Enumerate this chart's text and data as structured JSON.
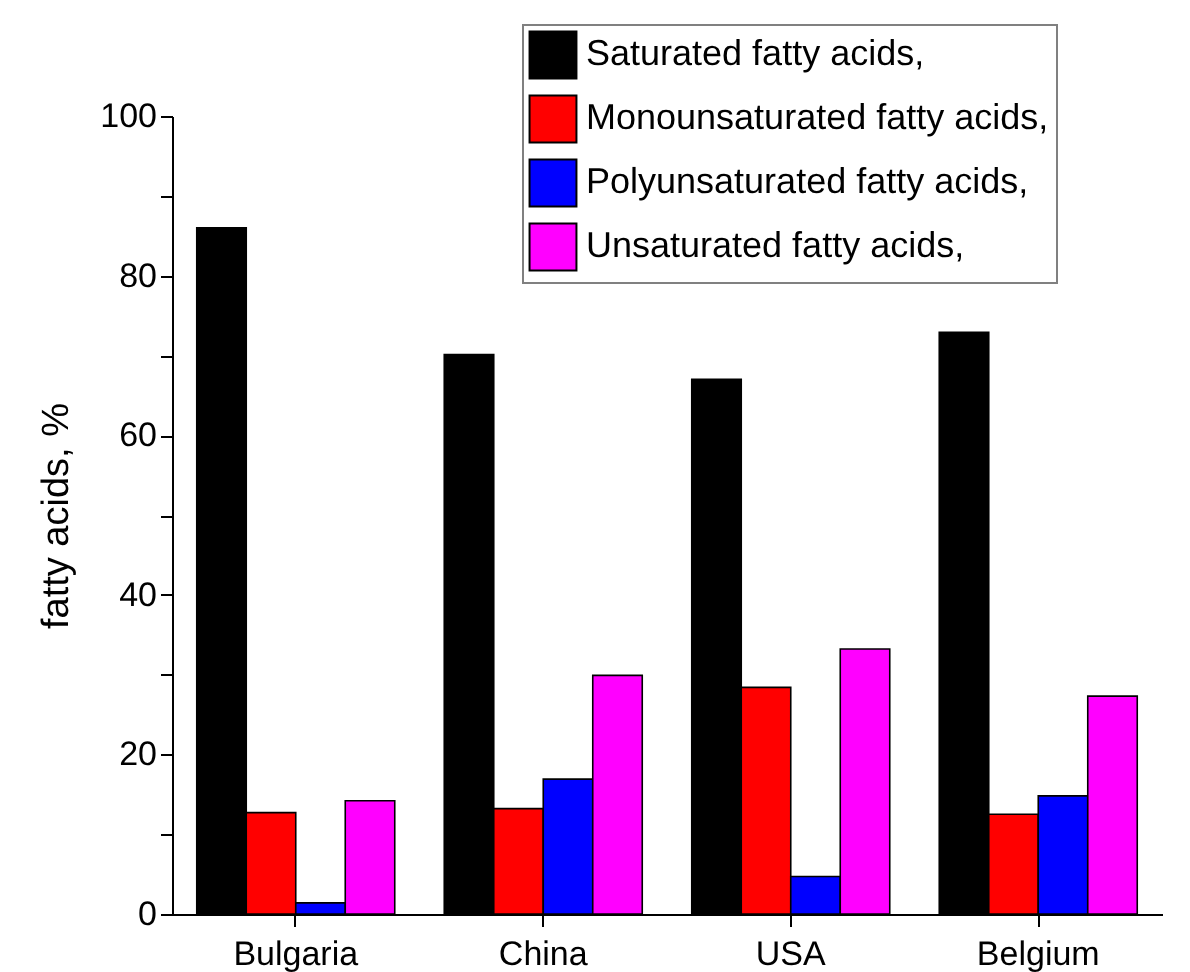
{
  "chart_data": {
    "type": "bar",
    "ylabel": "fatty acids, %",
    "categories": [
      "Bulgaria",
      "China",
      "USA",
      "Belgium"
    ],
    "series": [
      {
        "name": "Saturated fatty acids,",
        "color": "#000000",
        "values": [
          86.0,
          70.1,
          67.0,
          72.9
        ]
      },
      {
        "name": "Monounsaturated fatty acids,",
        "color": "#ff0000",
        "values": [
          12.7,
          13.2,
          28.4,
          12.5
        ]
      },
      {
        "name": "Polyunsaturated fatty acids,",
        "color": "#0000ff",
        "values": [
          1.4,
          16.9,
          4.7,
          14.8
        ]
      },
      {
        "name": "Unsaturated fatty acids,",
        "color": "#ff00ff",
        "values": [
          14.2,
          29.9,
          33.2,
          27.3
        ]
      }
    ],
    "ylim": [
      0,
      100
    ],
    "yticks": [
      0,
      {
        "value": 10,
        "label": null
      },
      20,
      {
        "value": 30,
        "label": null
      },
      40,
      {
        "value": 50,
        "label": null
      },
      60,
      {
        "value": 70,
        "label": null
      },
      80,
      {
        "value": 90,
        "label": null
      },
      100
    ],
    "grid": false,
    "legend": "top right"
  }
}
